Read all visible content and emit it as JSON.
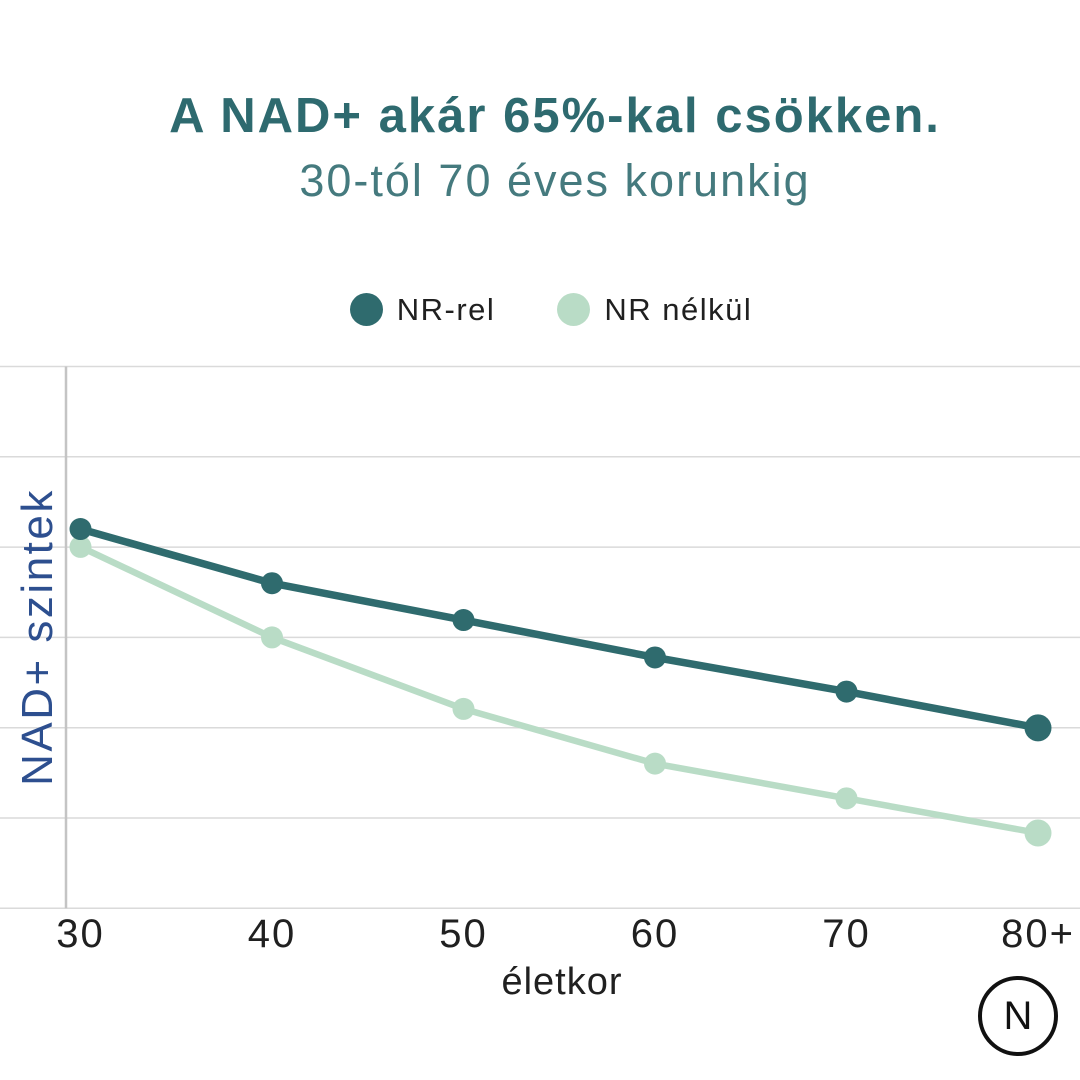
{
  "page": {
    "background": "#ffffff"
  },
  "header": {
    "title": "A NAD+ akár 65%-kal csökken.",
    "subtitle": "30-tól 70 éves korunkig"
  },
  "legend": {
    "items": [
      {
        "label": "NR-rel",
        "color": "#2f6b6e"
      },
      {
        "label": "NR nélkül",
        "color": "#b9dcc6"
      }
    ]
  },
  "chart_data": {
    "type": "line",
    "title": "A NAD+ akár 65%-kal csökken.",
    "subtitle": "30-tól 70 éves korunkig",
    "categories": [
      "30",
      "40",
      "50",
      "60",
      "70",
      "80+"
    ],
    "xlabel": "életkor",
    "ylabel": "NAD+ szintek",
    "ylim": [
      0,
      100
    ],
    "y_tick_labels_shown": false,
    "grid": "horizontal",
    "legend_position": "top-center",
    "series": [
      {
        "name": "NR-rel",
        "color": "#2f6b6e",
        "values": [
          70,
          60,
          53.2,
          46.3,
          40,
          33.3
        ]
      },
      {
        "name": "NR nélkül",
        "color": "#b9dcc6",
        "values": [
          66.7,
          50,
          36.8,
          26.7,
          20.3,
          13.9
        ]
      }
    ]
  },
  "footer_logo": {
    "letter": "N"
  },
  "colors": {
    "background": "#ffffff",
    "title": "#2e6a6f",
    "subtitle": "#457a7e",
    "text": "#202020",
    "ylabel": "#2d4f8f",
    "gridline": "#dadada",
    "axis_line": "#c4c4c4",
    "logo": "#111111"
  }
}
